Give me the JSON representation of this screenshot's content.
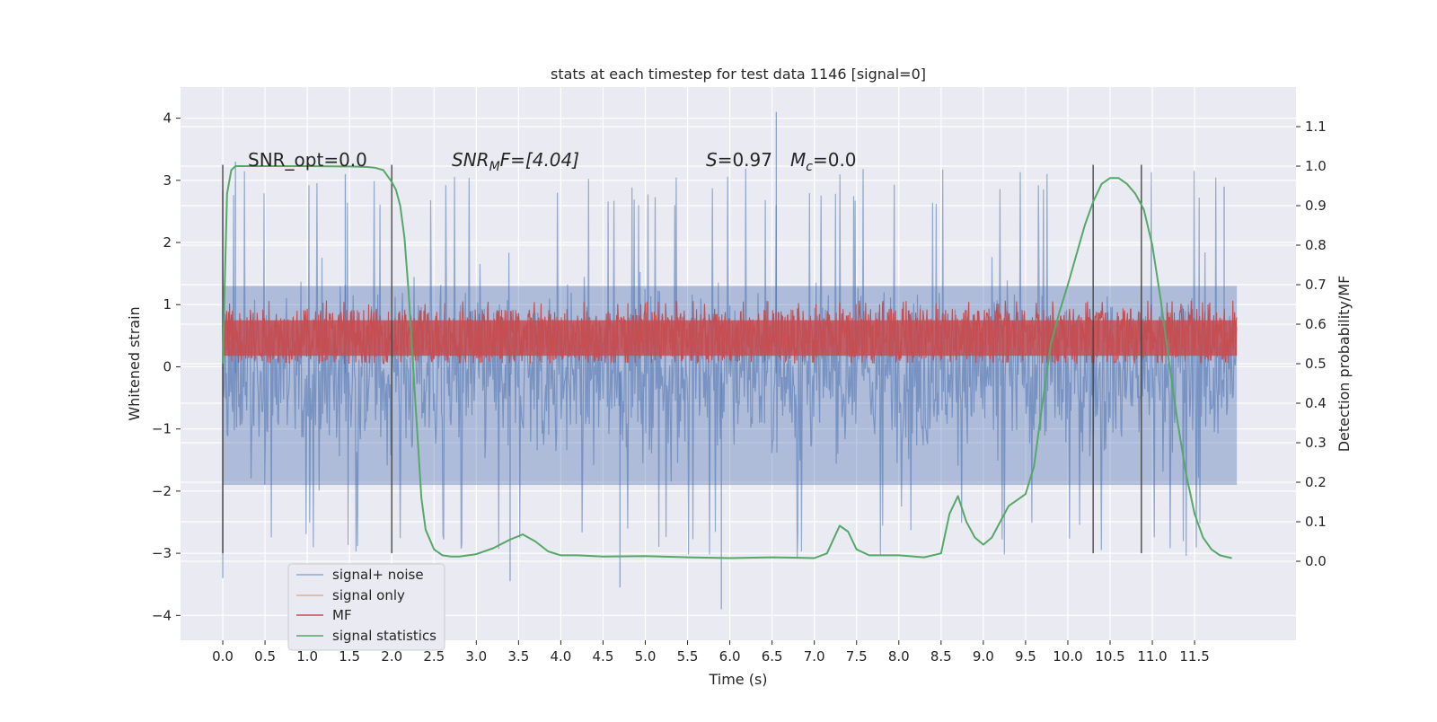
{
  "chart_data": {
    "type": "line",
    "title": "stats at each timestep for test data 1146 [signal=0]",
    "xlabel": "Time (s)",
    "ylabel_left": "Whitened strain",
    "ylabel_right": "Detection probability/MF",
    "xlim": [
      -0.5,
      12.7
    ],
    "ylim_left": [
      -4.4,
      4.5
    ],
    "ylim_right": [
      -0.2,
      1.2
    ],
    "grid": true,
    "legend_position": "lower-left",
    "x_ticks": [
      "0.0",
      "0.5",
      "1.0",
      "1.5",
      "2.0",
      "2.5",
      "3.0",
      "3.5",
      "4.0",
      "4.5",
      "5.0",
      "5.5",
      "6.0",
      "6.5",
      "7.0",
      "7.5",
      "8.0",
      "8.5",
      "9.0",
      "9.5",
      "10.0",
      "10.5",
      "11.0",
      "11.5"
    ],
    "y_ticks_left": [
      -4,
      -3,
      -2,
      -1,
      0,
      1,
      2,
      3,
      4
    ],
    "y_ticks_right": [
      "0.0",
      "0.1",
      "0.2",
      "0.3",
      "0.4",
      "0.5",
      "0.6",
      "0.7",
      "0.8",
      "0.9",
      "1.0",
      "1.1"
    ],
    "annotations": {
      "snr_opt": "SNR_opt=0.0",
      "snr_mf_base": "SNR",
      "snr_mf_sub": "M",
      "snr_mf_rest": "F=[4.04]",
      "s_label": "S",
      "s_value": "=0.97",
      "mc_base": "M",
      "mc_sub": "c",
      "mc_value": "=0.0"
    },
    "vertical_lines_x": [
      0.0,
      2.0,
      10.3,
      10.87
    ],
    "series": [
      {
        "name": "signal+ noise",
        "axis": "left",
        "color": "#4c72b0",
        "style": "noise band",
        "x_range": [
          0.0,
          12.0
        ],
        "mean": -0.1,
        "typical_range": [
          -2.5,
          2.6
        ],
        "min": -3.9,
        "max": 4.1,
        "points": [
          [
            0.0,
            2.85
          ],
          [
            0.0,
            -3.4
          ],
          [
            0.15,
            3.3
          ],
          [
            1.45,
            3.1
          ],
          [
            3.4,
            -3.45
          ],
          [
            4.7,
            -3.55
          ],
          [
            5.9,
            -3.9
          ],
          [
            6.55,
            4.1
          ],
          [
            11.85,
            2.9
          ]
        ]
      },
      {
        "name": "signal only",
        "axis": "left",
        "color": "#dd8452",
        "values": [
          0
        ]
      },
      {
        "name": "MF",
        "axis": "right",
        "color": "#c44e52",
        "style": "noise band",
        "x_range": [
          0.0,
          12.0
        ],
        "typical_range": [
          0.5,
          0.64
        ],
        "min": 0.49,
        "max": 0.66
      },
      {
        "name": "signal statistics",
        "axis": "right",
        "color": "#55a868",
        "x": [
          0.0,
          0.05,
          0.1,
          0.15,
          0.2,
          0.5,
          1.0,
          1.5,
          1.7,
          1.8,
          1.9,
          2.0,
          2.05,
          2.1,
          2.15,
          2.2,
          2.25,
          2.3,
          2.35,
          2.4,
          2.5,
          2.6,
          2.7,
          2.8,
          3.0,
          3.2,
          3.4,
          3.55,
          3.7,
          3.85,
          4.0,
          4.2,
          4.5,
          5.0,
          5.5,
          6.0,
          6.5,
          7.0,
          7.15,
          7.3,
          7.4,
          7.5,
          7.65,
          8.0,
          8.3,
          8.5,
          8.6,
          8.7,
          8.8,
          8.9,
          9.0,
          9.1,
          9.2,
          9.3,
          9.4,
          9.5,
          9.6,
          9.7,
          9.8,
          9.9,
          10.0,
          10.2,
          10.3,
          10.4,
          10.5,
          10.6,
          10.7,
          10.8,
          10.9,
          11.0,
          11.1,
          11.2,
          11.3,
          11.4,
          11.5,
          11.6,
          11.7,
          11.8,
          11.94
        ],
        "y": [
          0.5,
          0.93,
          0.99,
          1.0,
          1.0,
          1.0,
          1.0,
          0.999,
          0.998,
          0.996,
          0.99,
          0.96,
          0.94,
          0.9,
          0.82,
          0.68,
          0.5,
          0.33,
          0.16,
          0.08,
          0.03,
          0.015,
          0.012,
          0.012,
          0.018,
          0.033,
          0.055,
          0.068,
          0.05,
          0.025,
          0.015,
          0.015,
          0.012,
          0.013,
          0.01,
          0.008,
          0.01,
          0.008,
          0.02,
          0.09,
          0.075,
          0.03,
          0.015,
          0.015,
          0.01,
          0.02,
          0.12,
          0.165,
          0.1,
          0.06,
          0.042,
          0.06,
          0.1,
          0.14,
          0.155,
          0.17,
          0.24,
          0.4,
          0.55,
          0.63,
          0.7,
          0.85,
          0.91,
          0.955,
          0.97,
          0.97,
          0.955,
          0.93,
          0.89,
          0.8,
          0.66,
          0.5,
          0.35,
          0.22,
          0.12,
          0.06,
          0.03,
          0.015,
          0.008
        ]
      }
    ]
  }
}
